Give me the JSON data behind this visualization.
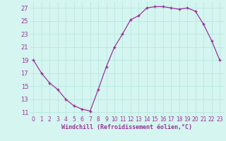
{
  "x": [
    0,
    1,
    2,
    3,
    4,
    5,
    6,
    7,
    8,
    9,
    10,
    11,
    12,
    13,
    14,
    15,
    16,
    17,
    18,
    19,
    20,
    21,
    22,
    23
  ],
  "y": [
    19,
    17,
    15.5,
    14.5,
    13,
    12,
    11.5,
    11.2,
    14.5,
    18,
    21,
    23,
    25.2,
    25.8,
    27,
    27.2,
    27.2,
    27,
    26.8,
    27,
    26.5,
    24.5,
    22,
    19
  ],
  "line_color": "#993399",
  "marker": "+",
  "background_color": "#d5f5f0",
  "grid_color": "#b8e8e0",
  "xlabel": "Windchill (Refroidissement éolien,°C)",
  "xlabel_color": "#993399",
  "tick_color": "#993399",
  "ylim": [
    10.5,
    28
  ],
  "yticks": [
    11,
    13,
    15,
    17,
    19,
    21,
    23,
    25,
    27
  ],
  "xlim": [
    -0.5,
    23.5
  ],
  "xticks": [
    0,
    1,
    2,
    3,
    4,
    5,
    6,
    7,
    8,
    9,
    10,
    11,
    12,
    13,
    14,
    15,
    16,
    17,
    18,
    19,
    20,
    21,
    22,
    23
  ]
}
